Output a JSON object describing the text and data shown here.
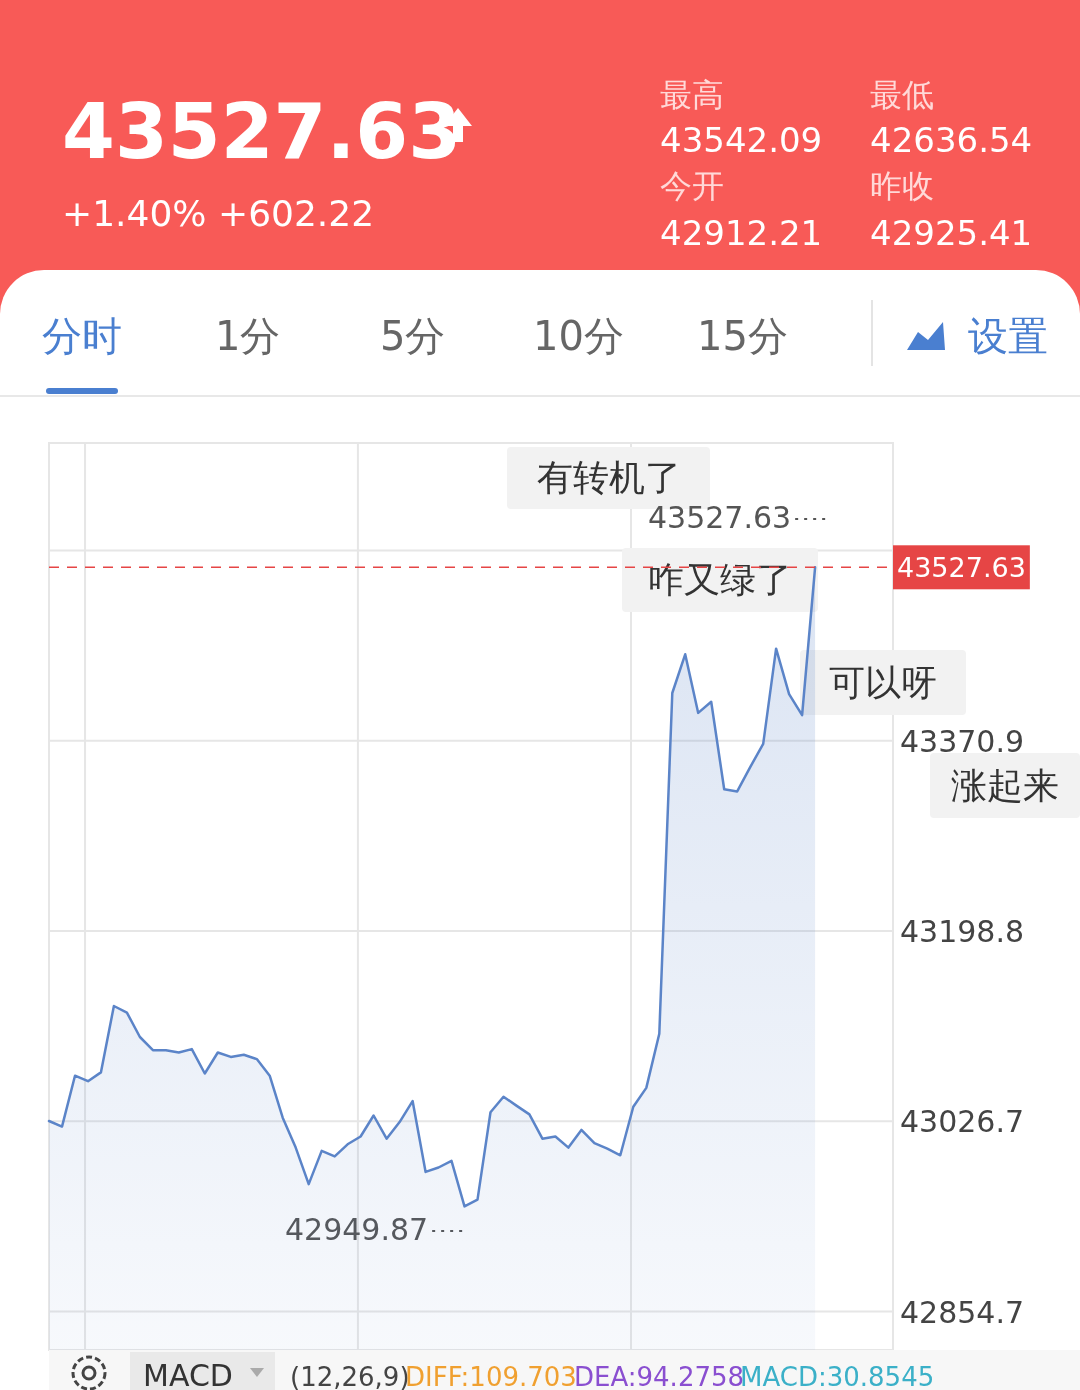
{
  "chart_data": [
    {
      "type": "other",
      "annotations": [
        "43527.63",
        "+1.40% +602.22",
        "最高",
        "43542.09",
        "最低",
        "42636.54",
        "今开",
        "42912.21",
        "昨收",
        "42925.41"
      ]
    },
    {
      "type": "other",
      "annotations": [
        "分时",
        "1分",
        "5分",
        "10分",
        "15分",
        "设置"
      ]
    },
    {
      "type": "area",
      "color": "#5b84c8",
      "tick_labels": "y",
      "grid": true,
      "categories": [
        null,
        null,
        null,
        null,
        null,
        null,
        null,
        null,
        null,
        null,
        null,
        null,
        null,
        null,
        null,
        null,
        null,
        null,
        null,
        null,
        null,
        null,
        null,
        null,
        null,
        null,
        null,
        null,
        null,
        null,
        null,
        null,
        null,
        null,
        null,
        null,
        null,
        null,
        null,
        null,
        null,
        null,
        null,
        null,
        null,
        null,
        null,
        null,
        null,
        null,
        null,
        null,
        null,
        null,
        null,
        null,
        null,
        null,
        null,
        null,
        null,
        null,
        null,
        null,
        null,
        null
      ],
      "values": [
        43027,
        43022,
        43068,
        43063,
        43071,
        43131,
        43125,
        43103,
        43091,
        43091,
        43089,
        43092,
        43070,
        43089,
        43085,
        43087,
        43083,
        43068,
        43030,
        43003,
        42970,
        43000,
        42995,
        43006,
        43013,
        43032,
        43011,
        43026,
        43045,
        42981,
        42985,
        42991,
        42949.87,
        42956,
        43035,
        43049,
        43041,
        43033,
        43011,
        43013,
        43003,
        43019,
        43007,
        43002,
        42996,
        43040,
        43057,
        43106,
        43414,
        43449,
        43396,
        43406,
        43327,
        43325,
        43347,
        43368,
        43454,
        43413,
        43394,
        43527.63,
        null,
        null,
        null,
        null,
        null,
        null
      ],
      "ylim": [
        42820,
        43640
      ],
      "yticks": [
        42854.7,
        43026.7,
        43198.8,
        43370.9,
        {
          "value": 43542.9,
          "label": null
        }
      ],
      "ref_lines": [
        {
          "axis": "y",
          "value": 43527.63,
          "label": "43527.63",
          "color": "#e64545",
          "line_style": "dashed"
        }
      ],
      "annotations": [
        "43527.63",
        "42949.87",
        "有转机了",
        "咋又绿了",
        "可以呀",
        "涨起来"
      ]
    },
    {
      "type": "other",
      "annotations": [
        "MACD",
        "(12,26,9)",
        "DIFF:109.703",
        "DEA:94.2758",
        "MACD:30.8545"
      ]
    }
  ]
}
